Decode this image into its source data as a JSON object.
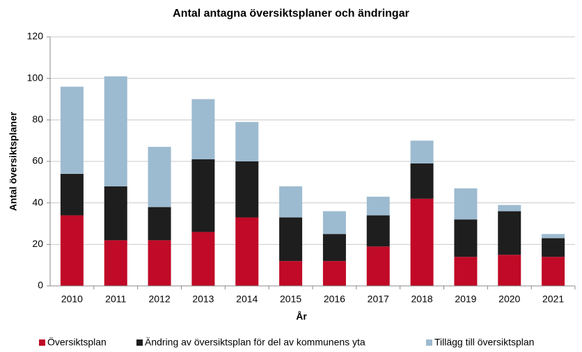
{
  "chart_data": {
    "type": "stacked_bar",
    "title": "Antal antagna översiktsplaner och ändringar",
    "x_label": "År",
    "y_label": "Antal översiktsplaner",
    "categories": [
      "2010",
      "2011",
      "2012",
      "2013",
      "2014",
      "2015",
      "2016",
      "2017",
      "2018",
      "2019",
      "2020",
      "2021"
    ],
    "series": [
      {
        "name": "Översiktsplan",
        "color": "#c00a27",
        "values": [
          34,
          22,
          22,
          26,
          33,
          12,
          12,
          19,
          42,
          14,
          15,
          14
        ]
      },
      {
        "name": "Ändring av översiktsplan för del av kommunens yta",
        "color": "#1e1e1e",
        "values": [
          20,
          26,
          16,
          35,
          27,
          21,
          13,
          15,
          17,
          18,
          21,
          9
        ]
      },
      {
        "name": "Tillägg till översiktsplan",
        "color": "#9dbbd0",
        "values": [
          42,
          53,
          29,
          29,
          19,
          15,
          11,
          9,
          11,
          15,
          3,
          2
        ]
      }
    ],
    "ylim": [
      0,
      120
    ],
    "yticks": [
      0,
      20,
      40,
      60,
      80,
      100,
      120
    ],
    "grid": true,
    "legend": "bottom"
  }
}
